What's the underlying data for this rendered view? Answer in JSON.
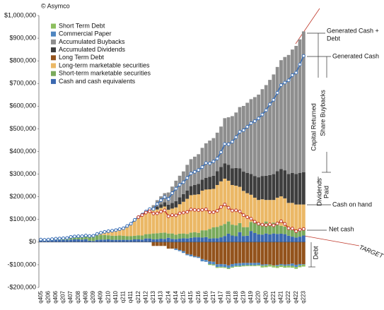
{
  "chart_data": {
    "type": "stacked-bar-line",
    "annotations": [
      {
        "text": "© Asymco"
      },
      {
        "text": "Generated Cash +"
      },
      {
        "text": "Debt"
      },
      {
        "text": "Capital Returned"
      },
      {
        "text": "Share Buybacks"
      },
      {
        "text": "Dividends"
      },
      {
        "text": "Paid"
      },
      {
        "text": "Cash on hand"
      },
      {
        "text": "Debt"
      },
      {
        "text": "TARGET"
      }
    ],
    "categories": [
      "q405",
      null,
      "q206",
      null,
      "q406",
      null,
      "q207",
      null,
      "q407",
      null,
      "q208",
      null,
      "q408",
      null,
      "q209",
      null,
      "q409",
      null,
      "q210",
      null,
      "q410",
      null,
      "q211",
      null,
      "q411",
      null,
      "q212",
      null,
      "q412",
      null,
      "q213",
      null,
      "q413",
      null,
      "q214",
      null,
      "q414",
      null,
      "q215",
      null,
      "q415",
      null,
      "q216",
      null,
      "q416",
      null,
      "q217",
      null,
      "q417",
      null,
      "q218",
      null,
      "q418",
      null,
      "q219",
      null,
      "q419",
      null,
      "q220",
      null,
      "q420",
      null,
      "q221",
      null,
      "q421",
      null,
      "q222",
      null,
      "q422",
      null,
      "q223"
    ],
    "series": [
      {
        "name": "Short Term Debt",
        "color": "#8cbf5e",
        "values": [
          0,
          0,
          0,
          0,
          0,
          0,
          0,
          0,
          0,
          0,
          0,
          0,
          0,
          0,
          0,
          0,
          0,
          0,
          0,
          0,
          0,
          0,
          0,
          0,
          0,
          0,
          0,
          0,
          0,
          0,
          0,
          0,
          0,
          0,
          0,
          0,
          0,
          0,
          0,
          0,
          0,
          0,
          0,
          0,
          0,
          -4000,
          -4000,
          -4000,
          -4000,
          -4000,
          -4000,
          -4000,
          -4000,
          -4000,
          -4000,
          -4000,
          -4000,
          -4000,
          -4000,
          -8000,
          -8000,
          -8000,
          -8000,
          -8000,
          -8000,
          -8000,
          -8000,
          -8000,
          -8000,
          -8000,
          -8000
        ]
      },
      {
        "name": "Commercial Paper",
        "color": "#4f86c0",
        "values": [
          0,
          0,
          0,
          0,
          0,
          0,
          0,
          0,
          0,
          0,
          0,
          0,
          0,
          0,
          0,
          0,
          0,
          0,
          0,
          0,
          0,
          0,
          0,
          0,
          0,
          0,
          0,
          0,
          0,
          0,
          0,
          0,
          0,
          0,
          0,
          0,
          -6000,
          -5000,
          -8000,
          -5000,
          -8000,
          -5000,
          -5000,
          -10000,
          -8000,
          -12000,
          -12000,
          -12000,
          -12000,
          -12000,
          -12000,
          -12000,
          -11000,
          -12000,
          -11000,
          -10000,
          -10000,
          -10000,
          -10000,
          -5000,
          -5000,
          -1000,
          -1000,
          -5000,
          -5000,
          -6000,
          -6000,
          -10000,
          -10000,
          -6000,
          -2000
        ]
      },
      {
        "name": "Accumulated Buybacks",
        "color": "#8e8e8e",
        "values": [
          0,
          0,
          0,
          0,
          0,
          0,
          0,
          0,
          0,
          0,
          0,
          0,
          0,
          0,
          0,
          0,
          0,
          0,
          0,
          0,
          0,
          0,
          0,
          0,
          0,
          0,
          0,
          0,
          0,
          2000,
          10000,
          28000,
          35000,
          40000,
          54000,
          72000,
          90000,
          95000,
          100000,
          113000,
          119000,
          125000,
          131000,
          140000,
          152000,
          160000,
          166000,
          170000,
          178000,
          200000,
          210000,
          230000,
          245000,
          270000,
          290000,
          310000,
          330000,
          348000,
          365000,
          383000,
          400000,
          420000,
          440000,
          460000,
          480000,
          500000,
          525000,
          545000,
          565000,
          590000,
          621000
        ]
      },
      {
        "name": "Accumulated Dividends",
        "color": "#3e3e3e",
        "values": [
          0,
          0,
          0,
          0,
          0,
          0,
          0,
          0,
          0,
          0,
          0,
          0,
          0,
          0,
          0,
          0,
          0,
          0,
          0,
          0,
          0,
          0,
          0,
          0,
          0,
          0,
          0,
          2500,
          5000,
          7500,
          10000,
          13000,
          16000,
          19000,
          22000,
          25000,
          28000,
          31000,
          34000,
          37000,
          40000,
          43000,
          46000,
          49000,
          52000,
          55000,
          58000,
          61000,
          64000,
          67000,
          70000,
          74000,
          78000,
          82000,
          85000,
          89000,
          92000,
          96000,
          100000,
          103000,
          107000,
          110000,
          114000,
          117000,
          121000,
          124000,
          128000,
          132000,
          135000,
          139000,
          143000
        ]
      },
      {
        "name": "Long Term Debt",
        "color": "#93531c",
        "values": [
          0,
          0,
          0,
          0,
          0,
          0,
          0,
          0,
          0,
          0,
          0,
          0,
          0,
          0,
          0,
          0,
          0,
          0,
          0,
          0,
          0,
          0,
          0,
          0,
          0,
          0,
          0,
          0,
          0,
          0,
          -17000,
          -17000,
          -17000,
          -17000,
          -29000,
          -29000,
          -29000,
          -35000,
          -40000,
          -53000,
          -55000,
          -62000,
          -65000,
          -75000,
          -79000,
          -85000,
          -87000,
          -98000,
          -97000,
          -98000,
          -103000,
          -97000,
          -94000,
          -93000,
          -92000,
          -92000,
          -92000,
          -92000,
          -91000,
          -99000,
          -98000,
          -99000,
          -103000,
          -101000,
          -97000,
          -99000,
          -98000,
          -95000,
          -100000,
          -97000,
          -98000
        ]
      },
      {
        "name": "Long-term marketable securities",
        "color": "#ebb866",
        "values": [
          0,
          0,
          0,
          0,
          0,
          0,
          0,
          0,
          0,
          0,
          0,
          0,
          0,
          3000,
          5000,
          7000,
          10000,
          14000,
          18000,
          22000,
          25000,
          28000,
          33000,
          45000,
          55000,
          70000,
          80000,
          90000,
          95000,
          100000,
          105000,
          105000,
          110000,
          115000,
          105000,
          110000,
          120000,
          130000,
          140000,
          155000,
          165000,
          165000,
          170000,
          175000,
          180000,
          175000,
          170000,
          185000,
          195000,
          200000,
          180000,
          175000,
          175000,
          160000,
          160000,
          150000,
          120000,
          105000,
          100000,
          105000,
          95000,
          110000,
          100000,
          120000,
          130000,
          125000,
          115000,
          120000,
          120000,
          115000,
          105000
        ]
      },
      {
        "name": "Short-term marketable securities",
        "color": "#7aaa5c",
        "values": [
          3000,
          3000,
          4000,
          5000,
          6000,
          7000,
          8000,
          9000,
          12000,
          13000,
          14000,
          15000,
          16000,
          18000,
          18000,
          19000,
          20000,
          20000,
          18000,
          18000,
          18000,
          19000,
          18000,
          16000,
          16000,
          16000,
          18000,
          18000,
          19000,
          20000,
          26000,
          26000,
          26000,
          28000,
          19000,
          24000,
          20000,
          22000,
          21000,
          20000,
          23000,
          23000,
          20000,
          32000,
          30000,
          42000,
          48000,
          50000,
          52000,
          53000,
          54000,
          48000,
          48000,
          40000,
          39000,
          38000,
          40000,
          51000,
          52000,
          51000,
          53000,
          42000,
          48000,
          40000,
          35000,
          33000,
          30000,
          29000,
          26000,
          27000,
          32000
        ]
      },
      {
        "name": "Cash and cash equivalents",
        "color": "#3b68b0",
        "values": [
          8000,
          7000,
          7000,
          8000,
          9000,
          9000,
          9000,
          9000,
          11000,
          12000,
          12000,
          11000,
          13000,
          6000,
          5000,
          10000,
          11000,
          11000,
          12000,
          10000,
          10000,
          10000,
          10000,
          10000,
          10000,
          12000,
          12000,
          11000,
          16000,
          16000,
          12000,
          13000,
          15000,
          14000,
          19000,
          14000,
          13000,
          15000,
          17000,
          16000,
          19000,
          21000,
          21000,
          20000,
          22000,
          16000,
          17000,
          17000,
          21000,
          27000,
          37000,
          29000,
          26000,
          44000,
          27000,
          28000,
          49000,
          40000,
          34000,
          33000,
          38000,
          34000,
          38000,
          36000,
          37000,
          35000,
          28000,
          24000,
          20000,
          24000,
          29000
        ]
      }
    ],
    "line_series": [
      {
        "name": "Generated Cash",
        "color": "#3b6fb5",
        "values": [
          11000,
          10000,
          11000,
          13000,
          15000,
          16000,
          17000,
          18000,
          23000,
          25000,
          26000,
          26000,
          29000,
          27000,
          28000,
          36000,
          41000,
          45000,
          48000,
          50000,
          53000,
          57000,
          61000,
          71000,
          81000,
          98000,
          110000,
          121500,
          135000,
          145500,
          146000,
          168000,
          185000,
          199000,
          190000,
          216000,
          236000,
          253000,
          264000,
          283000,
          303000,
          310000,
          318000,
          331000,
          349000,
          347000,
          356000,
          369000,
          397000,
          433000,
          432000,
          443000,
          463000,
          487000,
          494000,
          509000,
          525000,
          534000,
          546000,
          563000,
          582000,
          608000,
          628000,
          659000,
          693000,
          704000,
          714000,
          737000,
          748000,
          784000,
          822000
        ]
      },
      {
        "name": "Net cash",
        "color": "#c0392b",
        "values": [
          null,
          null,
          null,
          null,
          null,
          null,
          null,
          null,
          null,
          null,
          null,
          null,
          null,
          null,
          null,
          null,
          null,
          null,
          null,
          null,
          null,
          null,
          null,
          null,
          null,
          null,
          110000,
          119000,
          130000,
          136000,
          126000,
          127000,
          134000,
          140000,
          114000,
          119000,
          118000,
          127000,
          130000,
          133000,
          144000,
          142000,
          141000,
          142000,
          145000,
          132000,
          132000,
          138000,
          155000,
          166000,
          152000,
          139000,
          140000,
          135000,
          119000,
          110000,
          103000,
          90000,
          81000,
          77000,
          75000,
          78000,
          74000,
          82000,
          92000,
          80000,
          61000,
          60000,
          48000,
          55000,
          58000
        ]
      }
    ],
    "ylim": [
      -200000,
      1000000
    ],
    "yticks": [
      {
        "value": -200000,
        "label": "-$200,000"
      },
      {
        "value": -100000,
        "label": "-$100,000"
      },
      {
        "value": 0,
        "label": "$0"
      },
      {
        "value": 100000,
        "label": "$100,000"
      },
      {
        "value": 200000,
        "label": "$200,000"
      },
      {
        "value": 300000,
        "label": "$300,000"
      },
      {
        "value": 400000,
        "label": "$400,000"
      },
      {
        "value": 500000,
        "label": "$500,000"
      },
      {
        "value": 600000,
        "label": "$600,000"
      },
      {
        "value": 700000,
        "label": "$700,000"
      },
      {
        "value": 800000,
        "label": "$800,000"
      },
      {
        "value": 900000,
        "label": "$900,000"
      },
      {
        "value": 1000000,
        "label": "$1,000,000"
      }
    ],
    "grid": false,
    "legend": "upper left"
  }
}
